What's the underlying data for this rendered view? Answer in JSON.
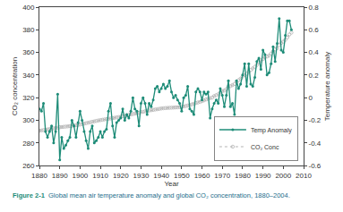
{
  "chart_data": {
    "type": "line",
    "caption": {
      "label": "Figure 2-1",
      "text": "Global mean air temperature anomaly and global CO₂ concentration, 1880–2004."
    },
    "x_label": "Year",
    "y_label": "CO₂ concentration",
    "y2_label": "Temperature anomaly",
    "x": [
      1880,
      1881,
      1882,
      1883,
      1884,
      1885,
      1886,
      1887,
      1888,
      1889,
      1890,
      1891,
      1892,
      1893,
      1894,
      1895,
      1896,
      1897,
      1898,
      1899,
      1900,
      1901,
      1902,
      1903,
      1904,
      1905,
      1906,
      1907,
      1908,
      1909,
      1910,
      1911,
      1912,
      1913,
      1914,
      1915,
      1916,
      1917,
      1918,
      1919,
      1920,
      1921,
      1922,
      1923,
      1924,
      1925,
      1926,
      1927,
      1928,
      1929,
      1930,
      1931,
      1932,
      1933,
      1934,
      1935,
      1936,
      1937,
      1938,
      1939,
      1940,
      1941,
      1942,
      1943,
      1944,
      1945,
      1946,
      1947,
      1948,
      1949,
      1950,
      1951,
      1952,
      1953,
      1954,
      1955,
      1956,
      1957,
      1958,
      1959,
      1960,
      1961,
      1962,
      1963,
      1964,
      1965,
      1966,
      1967,
      1968,
      1969,
      1970,
      1971,
      1972,
      1973,
      1974,
      1975,
      1976,
      1977,
      1978,
      1979,
      1980,
      1981,
      1982,
      1983,
      1984,
      1985,
      1986,
      1987,
      1988,
      1989,
      1990,
      1991,
      1992,
      1993,
      1994,
      1995,
      1996,
      1997,
      1998,
      1999,
      2000,
      2001,
      2002,
      2003,
      2004
    ],
    "series": [
      {
        "name": "Temp Anomaly",
        "color": "#1e8c78",
        "marker": "circle",
        "line_style": "solid",
        "axis": "y2",
        "values": [
          -0.1,
          -0.12,
          -0.05,
          -0.3,
          -0.35,
          -0.3,
          -0.25,
          -0.4,
          -0.3,
          0.03,
          -0.55,
          -0.35,
          -0.45,
          -0.42,
          -0.38,
          -0.35,
          -0.2,
          -0.25,
          -0.35,
          -0.22,
          -0.12,
          -0.2,
          -0.3,
          -0.38,
          -0.45,
          -0.3,
          -0.25,
          -0.4,
          -0.38,
          -0.35,
          -0.3,
          -0.35,
          -0.3,
          -0.28,
          -0.12,
          -0.05,
          -0.25,
          -0.35,
          -0.22,
          -0.2,
          -0.18,
          -0.1,
          -0.2,
          -0.15,
          -0.18,
          -0.12,
          0.0,
          -0.1,
          -0.12,
          -0.25,
          -0.05,
          0.0,
          -0.05,
          -0.15,
          -0.05,
          -0.08,
          -0.02,
          0.08,
          0.1,
          0.05,
          0.08,
          0.12,
          0.08,
          0.1,
          0.15,
          0.05,
          0.0,
          0.02,
          -0.02,
          -0.05,
          -0.12,
          0.0,
          0.02,
          0.1,
          -0.1,
          -0.12,
          -0.15,
          0.05,
          0.08,
          0.05,
          -0.02,
          0.05,
          0.03,
          0.05,
          -0.18,
          -0.1,
          -0.05,
          -0.02,
          -0.05,
          0.08,
          0.02,
          -0.08,
          0.02,
          0.15,
          -0.08,
          -0.05,
          -0.15,
          0.15,
          0.08,
          0.12,
          0.2,
          0.3,
          0.1,
          0.3,
          0.12,
          0.1,
          0.18,
          0.32,
          0.35,
          0.25,
          0.42,
          0.38,
          0.2,
          0.22,
          0.3,
          0.45,
          0.32,
          0.48,
          0.7,
          0.42,
          0.4,
          0.55,
          0.68,
          0.68,
          0.6
        ]
      },
      {
        "name": "CO₂ Conc",
        "color": "#b4b4b4",
        "marker": "circle-open",
        "line_style": "dot",
        "axis": "y",
        "values": [
          290.7,
          291.0,
          291.3,
          291.6,
          291.9,
          292.2,
          292.5,
          292.8,
          293.1,
          293.4,
          293.8,
          294.0,
          294.2,
          294.4,
          294.6,
          294.8,
          295.0,
          295.3,
          295.6,
          295.9,
          296.2,
          296.6,
          297.0,
          297.4,
          297.8,
          298.2,
          298.6,
          299.0,
          299.4,
          299.8,
          300.1,
          300.4,
          300.7,
          301.0,
          301.3,
          301.6,
          301.9,
          302.2,
          302.5,
          302.8,
          303.1,
          303.5,
          303.9,
          304.3,
          304.7,
          305.1,
          305.5,
          305.9,
          306.3,
          306.7,
          307.1,
          307.5,
          307.9,
          308.3,
          308.6,
          308.9,
          309.2,
          309.5,
          309.8,
          310.1,
          310.4,
          310.6,
          310.8,
          310.9,
          311.0,
          311.1,
          311.2,
          311.3,
          311.4,
          311.6,
          311.8,
          312.2,
          312.6,
          313.0,
          313.5,
          314.0,
          314.6,
          315.2,
          315.7,
          316.2,
          316.9,
          317.6,
          318.4,
          319.0,
          319.6,
          320.0,
          321.4,
          322.2,
          323.0,
          324.6,
          325.7,
          326.3,
          327.5,
          329.7,
          330.2,
          331.1,
          332.0,
          333.8,
          335.4,
          336.8,
          338.7,
          339.9,
          341.1,
          342.8,
          344.4,
          345.9,
          347.2,
          348.9,
          351.5,
          352.9,
          354.2,
          355.6,
          356.4,
          357.1,
          358.9,
          360.9,
          362.7,
          363.8,
          366.7,
          368.4,
          369.5,
          371.1,
          373.2,
          375.8,
          377.5
        ]
      }
    ],
    "xlim": [
      1880,
      2010
    ],
    "xticks": [
      1880,
      1890,
      1900,
      1910,
      1920,
      1930,
      1940,
      1950,
      1960,
      1970,
      1980,
      1990,
      2000,
      2010
    ],
    "ylim": [
      260,
      400
    ],
    "yticks": [
      260,
      280,
      300,
      320,
      340,
      360,
      380,
      400
    ],
    "y2lim": [
      -0.6,
      0.8
    ],
    "y2ticks": [
      -0.6,
      -0.4,
      -0.2,
      0,
      0.2,
      0.4,
      0.6,
      0.8
    ],
    "grid": false,
    "legend": "lower right"
  }
}
